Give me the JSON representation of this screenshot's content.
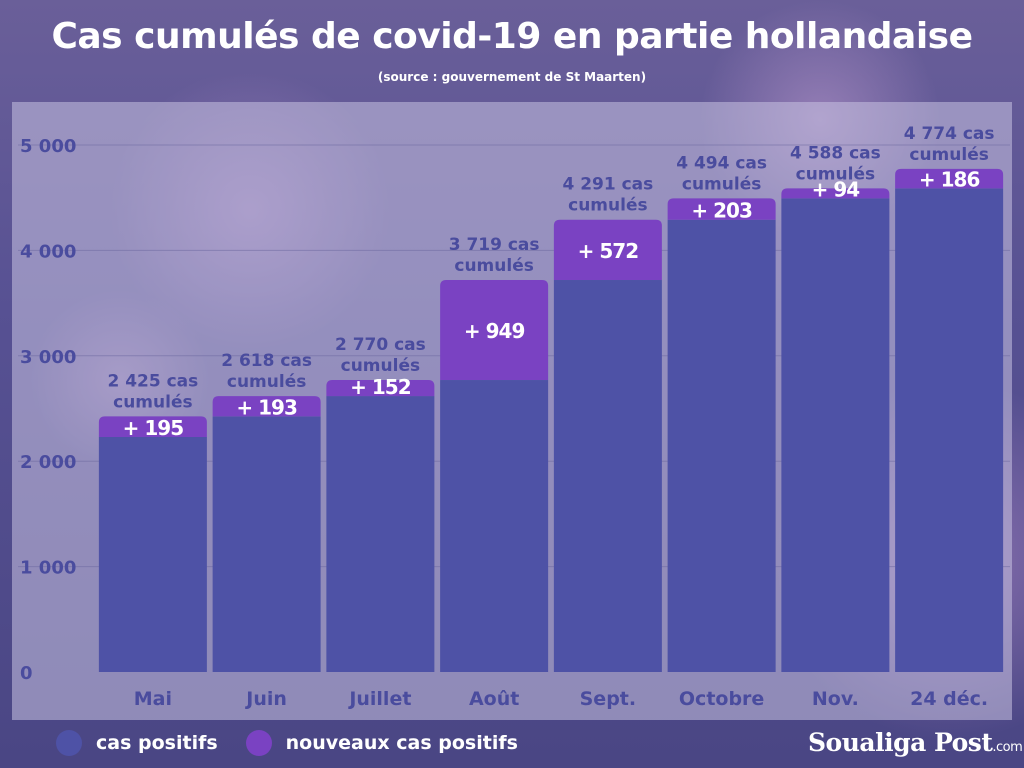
{
  "title": "Cas cumulés de covid-19 en partie hollandaise",
  "subtitle": "(source : gouvernement de St Maarten)",
  "legend": [
    {
      "label": "cas positifs",
      "color": "#4e52a6"
    },
    {
      "label": "nouveaux cas positifs",
      "color": "#7a42c2"
    }
  ],
  "brand": {
    "name": "Soualiga Post",
    "suffix": ".com"
  },
  "chart_data": {
    "type": "bar",
    "stacked": true,
    "categories": [
      "Mai",
      "Juin",
      "Juillet",
      "Août",
      "Sept.",
      "Octobre",
      "Nov.",
      "24 déc."
    ],
    "series": [
      {
        "name": "cas positifs",
        "color": "#4e52a6",
        "values": [
          2230,
          2425,
          2618,
          2770,
          3719,
          4291,
          4494,
          4588
        ]
      },
      {
        "name": "nouveaux cas positifs",
        "color": "#7a42c2",
        "values": [
          195,
          193,
          152,
          949,
          572,
          203,
          94,
          186
        ]
      }
    ],
    "increment_labels": [
      "+ 195",
      "+ 193",
      "+ 152",
      "+ 949",
      "+ 572",
      "+ 203",
      "+ 94",
      "+ 186"
    ],
    "total_labels": [
      [
        "2 425 cas",
        "cumulés"
      ],
      [
        "2 618 cas",
        "cumulés"
      ],
      [
        "2 770 cas",
        "cumulés"
      ],
      [
        "3  719 cas",
        "cumulés"
      ],
      [
        "4 291 cas",
        "cumulés"
      ],
      [
        "4 494 cas",
        "cumulés"
      ],
      [
        "4 588 cas",
        "cumulés"
      ],
      [
        "4 774 cas",
        "cumulés"
      ]
    ],
    "yticks": [
      "0",
      "1 000",
      "2 000",
      "3 000",
      "4 000",
      "5 000"
    ],
    "ytick_values": [
      0,
      1000,
      2000,
      3000,
      4000,
      5000
    ],
    "ylim": [
      0,
      5000
    ],
    "grid": true
  }
}
